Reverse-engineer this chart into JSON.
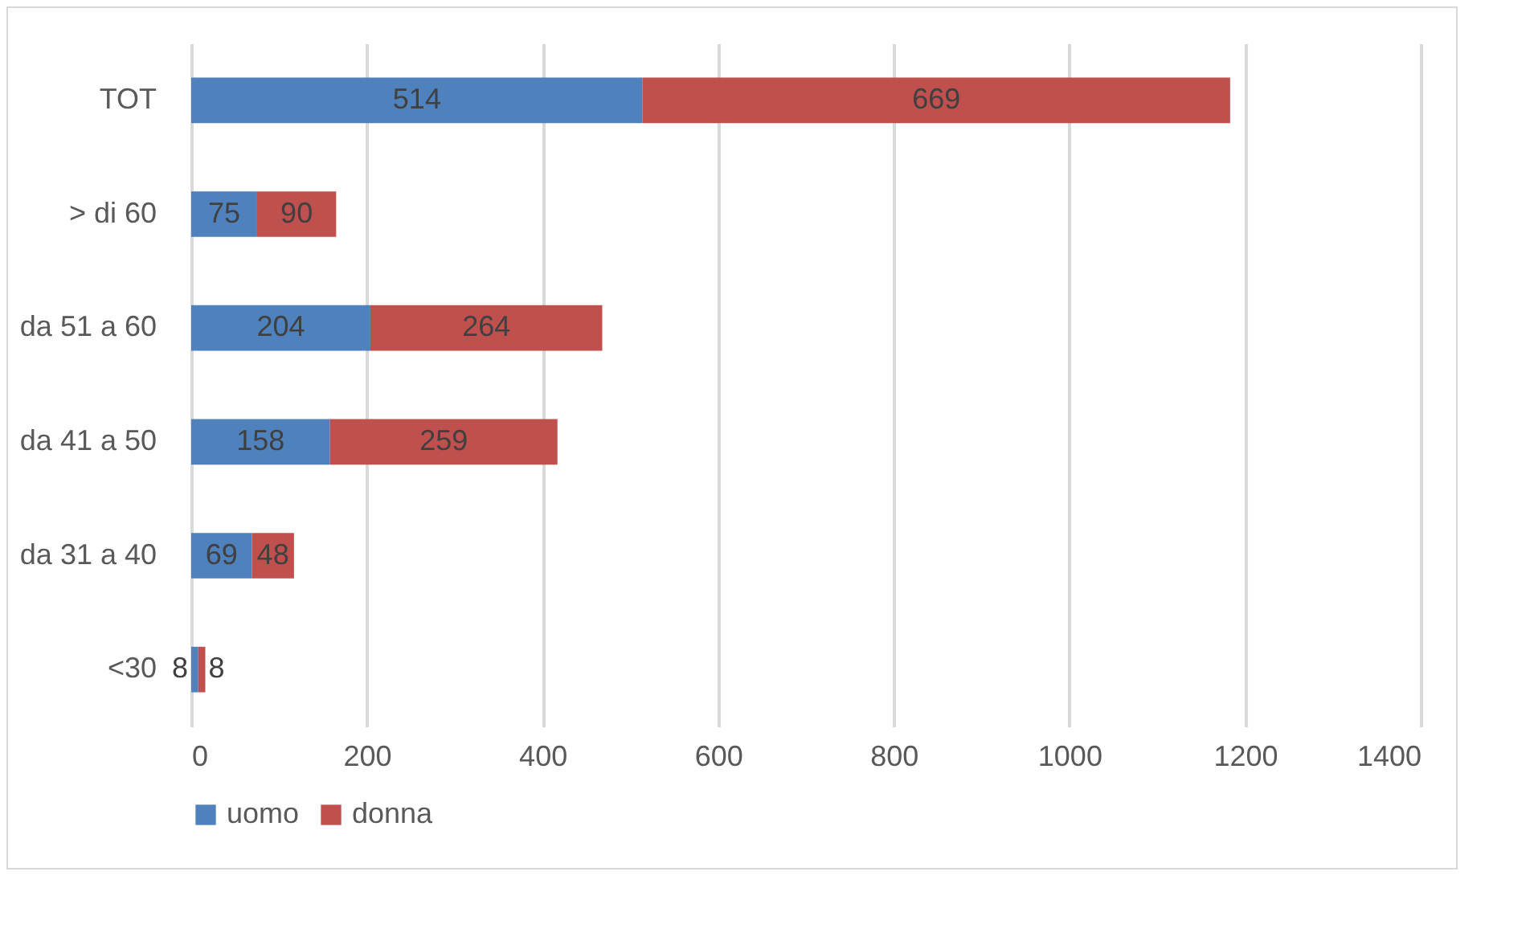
{
  "chart_data": {
    "type": "bar",
    "orientation": "horizontal",
    "stacked": true,
    "categories": [
      "TOT",
      "> di 60",
      "da 51 a 60",
      "da 41 a 50",
      "da 31 a 40",
      "<30"
    ],
    "series": [
      {
        "name": "uomo",
        "color": "#4f81bd",
        "values": [
          514,
          75,
          204,
          158,
          69,
          8
        ]
      },
      {
        "name": "donna",
        "color": "#c0504d",
        "values": [
          669,
          90,
          264,
          259,
          48,
          8
        ]
      }
    ],
    "xlim": [
      0,
      1400
    ],
    "xticks": [
      0,
      200,
      400,
      600,
      800,
      1000,
      1200,
      1400
    ],
    "grid": "x",
    "legend": "bottom",
    "data_labels": true
  }
}
